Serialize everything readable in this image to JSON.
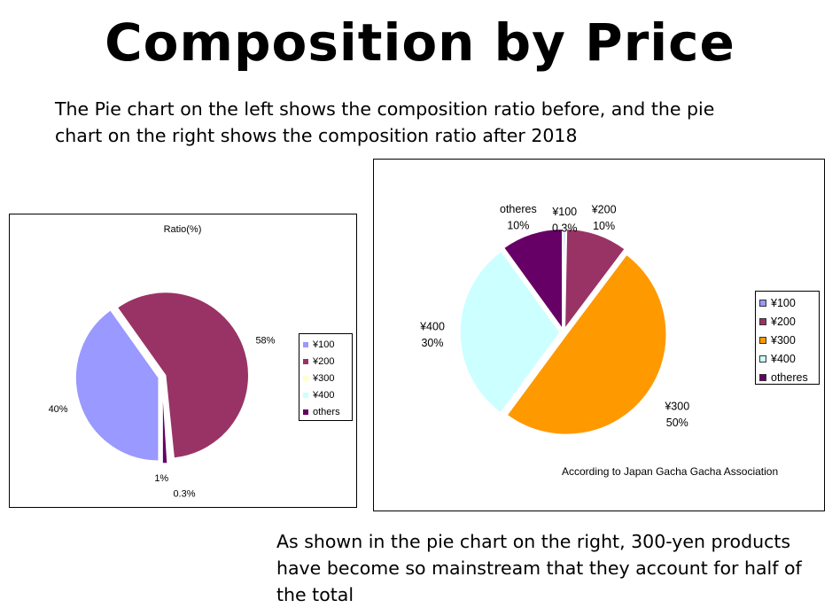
{
  "page": {
    "title": "Composition by Price",
    "intro": "The Pie chart on the left shows the composition ratio before, and the pie chart on the right shows the composition ratio after 2018",
    "conclusion": "As shown in the pie chart on the right, 300-yen products have become so mainstream that they account for half of the total",
    "source": "According to Japan Gacha Gacha Association"
  },
  "chart_data": [
    {
      "type": "pie",
      "title": "Ratio(%)",
      "categories": [
        "¥100",
        "¥200",
        "¥300",
        "¥400",
        "others"
      ],
      "values": [
        40,
        58,
        0.3,
        0.3,
        1
      ],
      "data_labels": [
        "40%",
        "58%",
        "",
        "0.3%",
        "1%"
      ],
      "colors": [
        "#9999ff",
        "#993366",
        "#ffffcc",
        "#ccffff",
        "#660066"
      ],
      "legend_position": "right"
    },
    {
      "type": "pie",
      "title": "",
      "categories": [
        "¥100",
        "¥200",
        "¥300",
        "¥400",
        "otheres"
      ],
      "values": [
        0.3,
        10,
        50,
        30,
        10
      ],
      "data_labels": [
        [
          "¥100",
          "0.3%"
        ],
        [
          "¥200",
          "10%"
        ],
        [
          "¥300",
          "50%"
        ],
        [
          "¥400",
          "30%"
        ],
        [
          "otheres",
          "10%"
        ]
      ],
      "colors": [
        "#9999ff",
        "#993366",
        "#ff9900",
        "#ccffff",
        "#660066"
      ],
      "legend_position": "right"
    }
  ]
}
